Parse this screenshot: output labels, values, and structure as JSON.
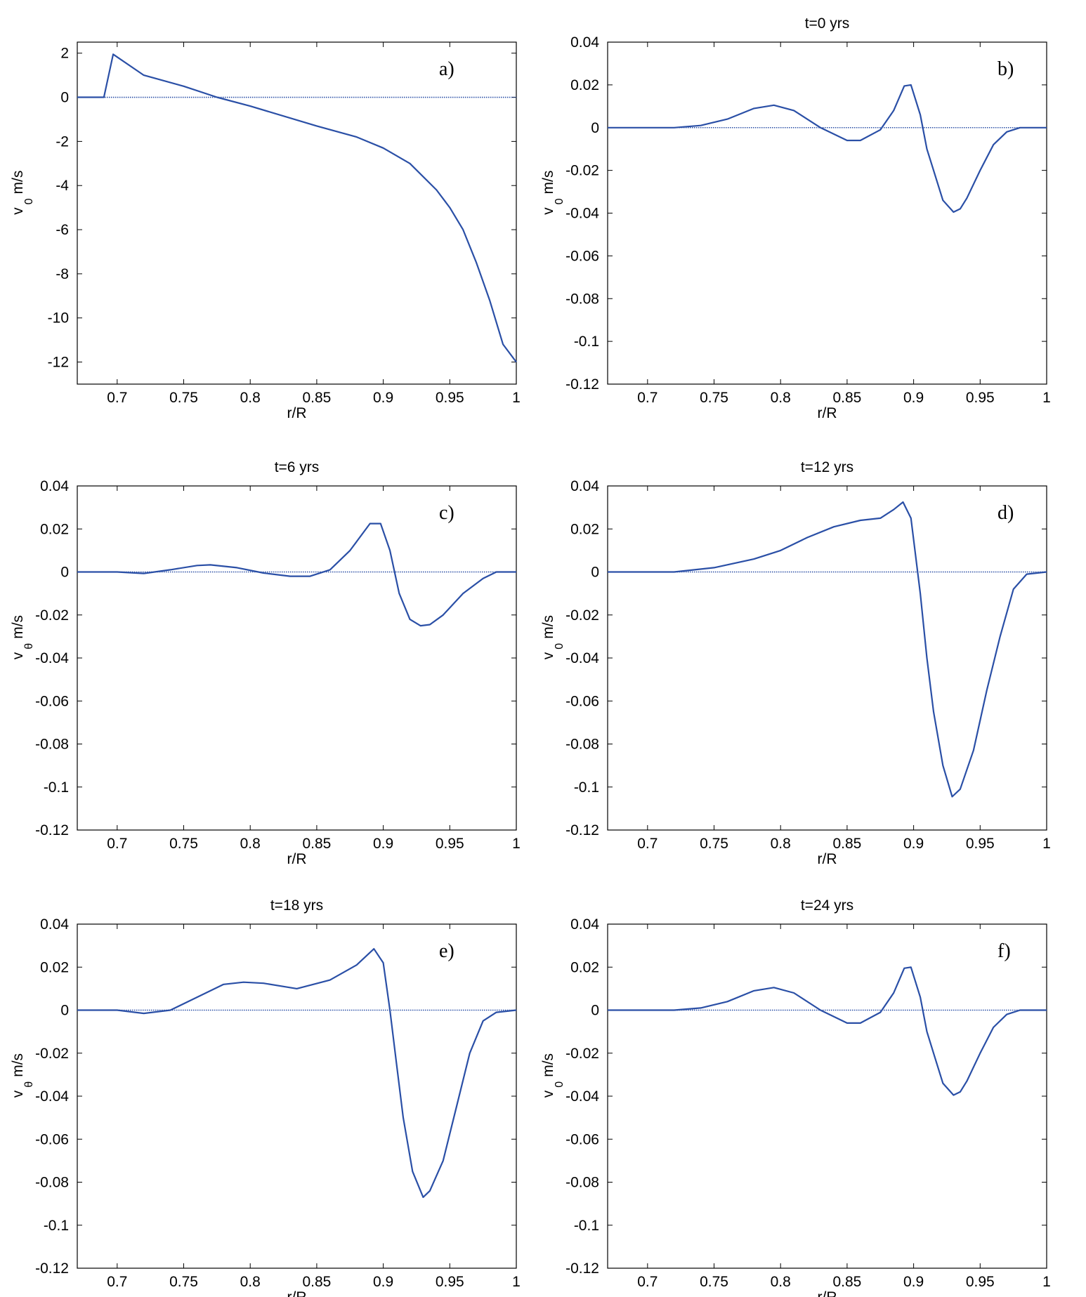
{
  "chart_data": [
    {
      "type": "line",
      "panel": "a)",
      "title": "",
      "xlabel": "r/R",
      "ylabel": "v",
      "ylabel_sub": "0",
      "ylabel_unit": "m/s",
      "xlim": [
        0.67,
        1.0
      ],
      "ylim": [
        -13,
        2.5
      ],
      "xticks": [
        0.7,
        0.75,
        0.8,
        0.85,
        0.9,
        0.95,
        1
      ],
      "xtick_labels": [
        "0.7",
        "0.75",
        "0.8",
        "0.85",
        "0.9",
        "0.95",
        "1"
      ],
      "yticks": [
        2,
        0,
        -2,
        -4,
        -6,
        -8,
        -10,
        -12
      ],
      "ytick_labels": [
        "2",
        "0",
        "-2",
        "-4",
        "-6",
        "-8",
        "-10",
        "-12"
      ],
      "series": [
        {
          "x": [
            0.67,
            0.69,
            0.697,
            0.72,
            0.75,
            0.775,
            0.8,
            0.85,
            0.88,
            0.9,
            0.92,
            0.94,
            0.95,
            0.96,
            0.97,
            0.98,
            0.99,
            1.0
          ],
          "y": [
            0,
            0,
            1.95,
            1.0,
            0.5,
            0.0,
            -0.4,
            -1.3,
            -1.8,
            -2.3,
            -3.0,
            -4.2,
            -5.0,
            -6.0,
            -7.5,
            -9.2,
            -11.2,
            -12.0
          ]
        }
      ],
      "zero_line": true
    },
    {
      "type": "line",
      "panel": "b)",
      "title": "t=0 yrs",
      "xlabel": "r/R",
      "ylabel": "v",
      "ylabel_sub": "0",
      "ylabel_unit": "m/s",
      "xlim": [
        0.67,
        1.0
      ],
      "ylim": [
        -0.12,
        0.04
      ],
      "xticks": [
        0.7,
        0.75,
        0.8,
        0.85,
        0.9,
        0.95,
        1
      ],
      "xtick_labels": [
        "0.7",
        "0.75",
        "0.8",
        "0.85",
        "0.9",
        "0.95",
        "1"
      ],
      "yticks": [
        0.04,
        0.02,
        0,
        -0.02,
        -0.04,
        -0.06,
        -0.08,
        -0.1,
        -0.12
      ],
      "ytick_labels": [
        "0.04",
        "0.02",
        "0",
        "-0.02",
        "-0.04",
        "-0.06",
        "-0.08",
        "-0.1",
        "-0.12"
      ],
      "series": [
        {
          "x": [
            0.67,
            0.72,
            0.74,
            0.76,
            0.78,
            0.795,
            0.81,
            0.83,
            0.85,
            0.86,
            0.875,
            0.885,
            0.893,
            0.898,
            0.905,
            0.91,
            0.915,
            0.922,
            0.93,
            0.935,
            0.94,
            0.95,
            0.96,
            0.97,
            0.98,
            1.0
          ],
          "y": [
            0,
            0,
            0.001,
            0.004,
            0.009,
            0.0105,
            0.008,
            0.0,
            -0.006,
            -0.006,
            -0.001,
            0.008,
            0.0195,
            0.02,
            0.006,
            -0.01,
            -0.02,
            -0.034,
            -0.0395,
            -0.038,
            -0.033,
            -0.02,
            -0.008,
            -0.002,
            0.0,
            0.0
          ]
        }
      ],
      "zero_line": true
    },
    {
      "type": "line",
      "panel": "c)",
      "title": "t=6 yrs",
      "xlabel": "r/R",
      "ylabel": "v",
      "ylabel_sub": "θ",
      "ylabel_unit": "m/s",
      "xlim": [
        0.67,
        1.0
      ],
      "ylim": [
        -0.12,
        0.04
      ],
      "xticks": [
        0.7,
        0.75,
        0.8,
        0.85,
        0.9,
        0.95,
        1
      ],
      "xtick_labels": [
        "0.7",
        "0.75",
        "0.8",
        "0.85",
        "0.9",
        "0.95",
        "1"
      ],
      "yticks": [
        0.04,
        0.02,
        0,
        -0.02,
        -0.04,
        -0.06,
        -0.08,
        -0.1,
        -0.12
      ],
      "ytick_labels": [
        "0.04",
        "0.02",
        "0",
        "-0.02",
        "-0.04",
        "-0.06",
        "-0.08",
        "-0.1",
        "-0.12"
      ],
      "series": [
        {
          "x": [
            0.67,
            0.7,
            0.72,
            0.74,
            0.76,
            0.77,
            0.79,
            0.81,
            0.83,
            0.845,
            0.86,
            0.875,
            0.89,
            0.898,
            0.905,
            0.912,
            0.92,
            0.928,
            0.935,
            0.945,
            0.96,
            0.975,
            0.985,
            1.0
          ],
          "y": [
            0,
            0,
            -0.0007,
            0.001,
            0.003,
            0.0033,
            0.002,
            -0.0005,
            -0.002,
            -0.002,
            0.001,
            0.01,
            0.0225,
            0.0225,
            0.01,
            -0.01,
            -0.022,
            -0.025,
            -0.0245,
            -0.02,
            -0.01,
            -0.003,
            0.0,
            0.0
          ]
        }
      ],
      "zero_line": true
    },
    {
      "type": "line",
      "panel": "d)",
      "title": "t=12 yrs",
      "xlabel": "r/R",
      "ylabel": "v",
      "ylabel_sub": "0",
      "ylabel_unit": "m/s",
      "xlim": [
        0.67,
        1.0
      ],
      "ylim": [
        -0.12,
        0.04
      ],
      "xticks": [
        0.7,
        0.75,
        0.8,
        0.85,
        0.9,
        0.95,
        1
      ],
      "xtick_labels": [
        "0.7",
        "0.75",
        "0.8",
        "0.85",
        "0.9",
        "0.95",
        "1"
      ],
      "yticks": [
        0.04,
        0.02,
        0,
        -0.02,
        -0.04,
        -0.06,
        -0.08,
        -0.1,
        -0.12
      ],
      "ytick_labels": [
        "0.04",
        "0.02",
        "0",
        "-0.02",
        "-0.04",
        "-0.06",
        "-0.08",
        "-0.1",
        "-0.12"
      ],
      "series": [
        {
          "x": [
            0.67,
            0.72,
            0.75,
            0.78,
            0.8,
            0.82,
            0.84,
            0.86,
            0.875,
            0.885,
            0.892,
            0.898,
            0.905,
            0.91,
            0.915,
            0.922,
            0.929,
            0.935,
            0.945,
            0.955,
            0.965,
            0.975,
            0.985,
            1.0
          ],
          "y": [
            0,
            0,
            0.002,
            0.006,
            0.01,
            0.016,
            0.021,
            0.024,
            0.025,
            0.029,
            0.0325,
            0.025,
            -0.01,
            -0.04,
            -0.065,
            -0.09,
            -0.1045,
            -0.101,
            -0.083,
            -0.055,
            -0.03,
            -0.008,
            -0.001,
            0.0
          ]
        }
      ],
      "zero_line": true
    },
    {
      "type": "line",
      "panel": "e)",
      "title": "t=18 yrs",
      "xlabel": "r/R",
      "ylabel": "v",
      "ylabel_sub": "θ",
      "ylabel_unit": "m/s",
      "xlim": [
        0.67,
        1.0
      ],
      "ylim": [
        -0.12,
        0.04
      ],
      "xticks": [
        0.7,
        0.75,
        0.8,
        0.85,
        0.9,
        0.95,
        1
      ],
      "xtick_labels": [
        "0.7",
        "0.75",
        "0.8",
        "0.85",
        "0.9",
        "0.95",
        "1"
      ],
      "yticks": [
        0.04,
        0.02,
        0,
        -0.02,
        -0.04,
        -0.06,
        -0.08,
        -0.1,
        -0.12
      ],
      "ytick_labels": [
        "0.04",
        "0.02",
        "0",
        "-0.02",
        "-0.04",
        "-0.06",
        "-0.08",
        "-0.1",
        "-0.12"
      ],
      "series": [
        {
          "x": [
            0.67,
            0.7,
            0.72,
            0.74,
            0.76,
            0.78,
            0.795,
            0.81,
            0.835,
            0.86,
            0.88,
            0.893,
            0.9,
            0.905,
            0.91,
            0.915,
            0.922,
            0.93,
            0.935,
            0.945,
            0.955,
            0.965,
            0.975,
            0.985,
            1.0
          ],
          "y": [
            0,
            0,
            -0.0015,
            0.0,
            0.006,
            0.012,
            0.013,
            0.0125,
            0.01,
            0.014,
            0.021,
            0.0285,
            0.022,
            0.0,
            -0.025,
            -0.05,
            -0.075,
            -0.087,
            -0.084,
            -0.07,
            -0.045,
            -0.02,
            -0.005,
            -0.001,
            0.0
          ]
        }
      ],
      "zero_line": true
    },
    {
      "type": "line",
      "panel": "f)",
      "title": "t=24 yrs",
      "xlabel": "r/R",
      "ylabel": "v",
      "ylabel_sub": "0",
      "ylabel_unit": "m/s",
      "xlim": [
        0.67,
        1.0
      ],
      "ylim": [
        -0.12,
        0.04
      ],
      "xticks": [
        0.7,
        0.75,
        0.8,
        0.85,
        0.9,
        0.95,
        1
      ],
      "xtick_labels": [
        "0.7",
        "0.75",
        "0.8",
        "0.85",
        "0.9",
        "0.95",
        "1"
      ],
      "yticks": [
        0.04,
        0.02,
        0,
        -0.02,
        -0.04,
        -0.06,
        -0.08,
        -0.1,
        -0.12
      ],
      "ytick_labels": [
        "0.04",
        "0.02",
        "0",
        "-0.02",
        "-0.04",
        "-0.06",
        "-0.08",
        "-0.1",
        "-0.12"
      ],
      "series": [
        {
          "x": [
            0.67,
            0.72,
            0.74,
            0.76,
            0.78,
            0.795,
            0.81,
            0.83,
            0.85,
            0.86,
            0.875,
            0.885,
            0.893,
            0.898,
            0.905,
            0.91,
            0.915,
            0.922,
            0.93,
            0.935,
            0.94,
            0.95,
            0.96,
            0.97,
            0.98,
            1.0
          ],
          "y": [
            0,
            0,
            0.001,
            0.004,
            0.009,
            0.0105,
            0.008,
            0.0,
            -0.006,
            -0.006,
            -0.001,
            0.008,
            0.0195,
            0.02,
            0.006,
            -0.01,
            -0.02,
            -0.034,
            -0.0395,
            -0.038,
            -0.033,
            -0.02,
            -0.008,
            -0.002,
            0.0,
            0.0
          ]
        }
      ],
      "zero_line": true
    }
  ],
  "style": {
    "line_color": "#2a4fa6",
    "zero_line_color": "#2a4fa6",
    "axis_color": "#000000"
  }
}
